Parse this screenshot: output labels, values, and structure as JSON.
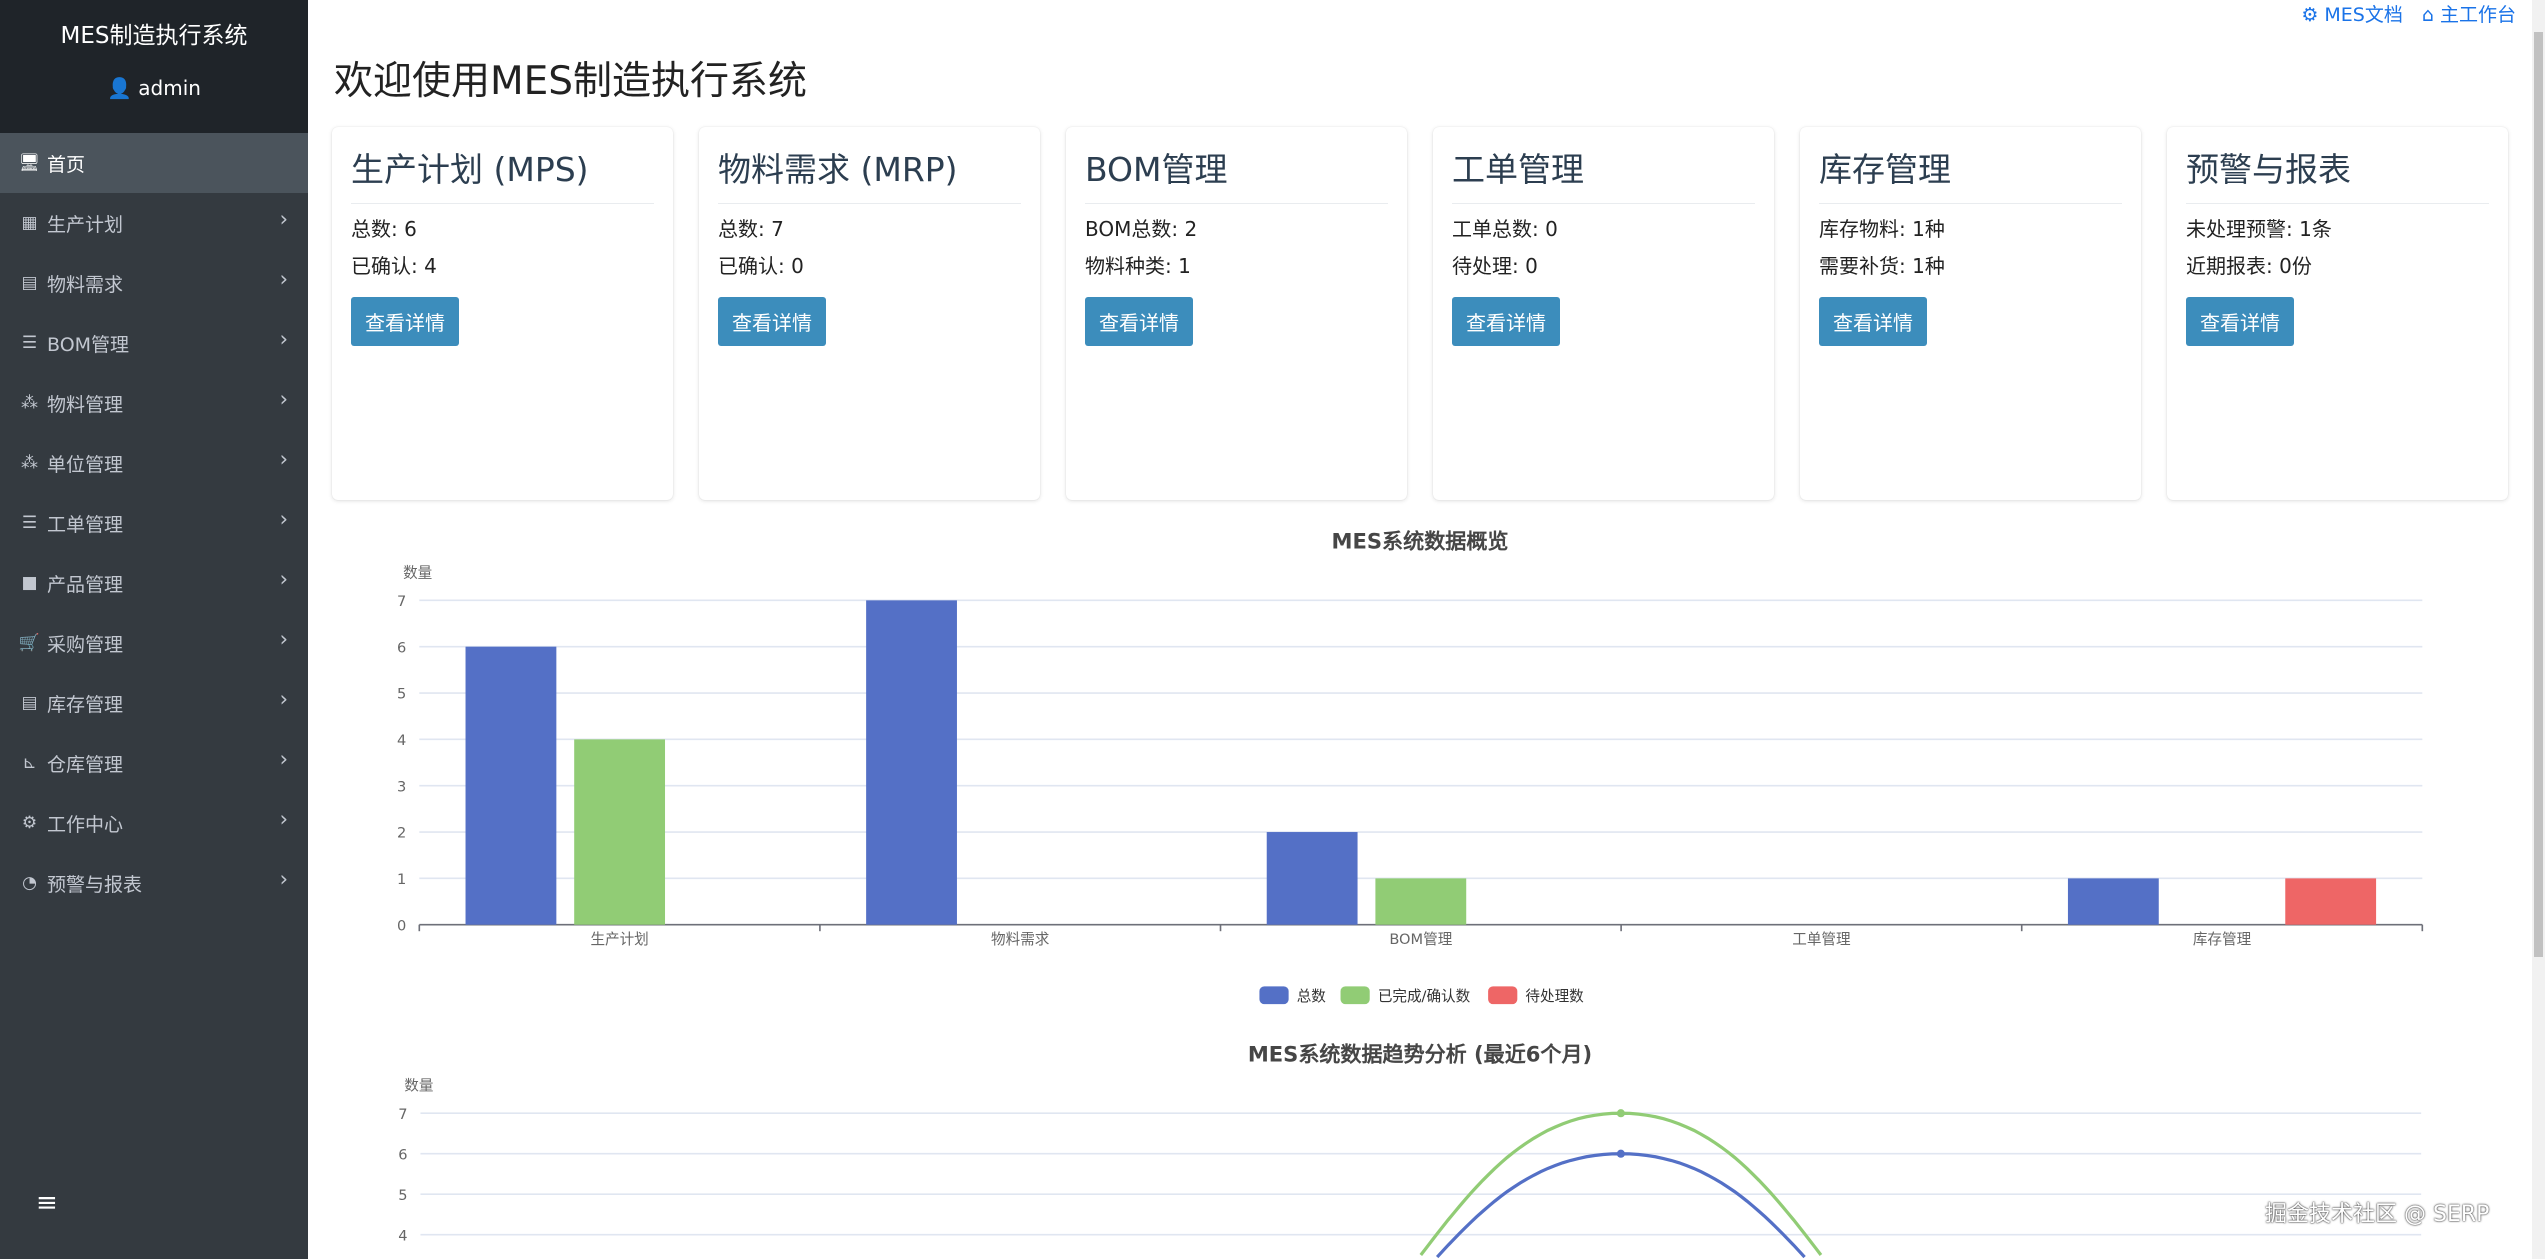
{
  "sidebar": {
    "title": "MES制造执行系统",
    "user": "admin",
    "items": [
      {
        "label": "首页",
        "icon": "desktop-icon",
        "glyph": "🖥",
        "active": true
      },
      {
        "label": "生产计划",
        "icon": "calendar-icon",
        "glyph": "▦"
      },
      {
        "label": "物料需求",
        "icon": "calculator-icon",
        "glyph": "▤"
      },
      {
        "label": "BOM管理",
        "icon": "list-ol-icon",
        "glyph": "☰"
      },
      {
        "label": "物料管理",
        "icon": "cubes-icon",
        "glyph": "⁂"
      },
      {
        "label": "单位管理",
        "icon": "cubes-icon",
        "glyph": "⁂"
      },
      {
        "label": "工单管理",
        "icon": "tasks-icon",
        "glyph": "☰"
      },
      {
        "label": "产品管理",
        "icon": "box-icon",
        "glyph": "■"
      },
      {
        "label": "采购管理",
        "icon": "cart-icon",
        "glyph": "🛒"
      },
      {
        "label": "库存管理",
        "icon": "warehouse-icon",
        "glyph": "▤"
      },
      {
        "label": "仓库管理",
        "icon": "dolly-icon",
        "glyph": "⊾"
      },
      {
        "label": "工作中心",
        "icon": "cogs-icon",
        "glyph": "⚙"
      },
      {
        "label": "预警与报表",
        "icon": "chart-pie-icon",
        "glyph": "◔"
      }
    ],
    "toggle": "≡"
  },
  "header": {
    "links": [
      {
        "label": "MES文档",
        "icon": "cog-icon",
        "glyph": "⚙"
      },
      {
        "label": "主工作台",
        "icon": "home-icon",
        "glyph": "⌂"
      }
    ]
  },
  "page_title": "欢迎使用MES制造执行系统",
  "cards": [
    {
      "title": "生产计划 (MPS)",
      "lines": [
        "总数: 6",
        "已确认: 4"
      ],
      "button": "查看详情"
    },
    {
      "title": "物料需求 (MRP)",
      "lines": [
        "总数: 7",
        "已确认: 0"
      ],
      "button": "查看详情"
    },
    {
      "title": "BOM管理",
      "lines": [
        "BOM总数: 2",
        "物料种类: 1"
      ],
      "button": "查看详情"
    },
    {
      "title": "工单管理",
      "lines": [
        "工单总数: 0",
        "待处理: 0"
      ],
      "button": "查看详情"
    },
    {
      "title": "库存管理",
      "lines": [
        "库存物料: 1种",
        "需要补货: 1种"
      ],
      "button": "查看详情"
    },
    {
      "title": "预警与报表",
      "lines": [
        "未处理预警: 1条",
        "近期报表: 0份"
      ],
      "button": "查看详情"
    }
  ],
  "chart_data": [
    {
      "type": "bar",
      "title": "MES系统数据概览",
      "ylabel": "数量",
      "ylim": [
        0,
        7
      ],
      "yticks": [
        "0",
        "1",
        "2",
        "3",
        "4",
        "5",
        "6",
        "7"
      ],
      "categories": [
        "生产计划",
        "物料需求",
        "BOM管理",
        "工单管理",
        "库存管理"
      ],
      "series": [
        {
          "name": "总数",
          "color": "#5470c6",
          "values": [
            6,
            7,
            2,
            0,
            1
          ]
        },
        {
          "name": "已完成/确认数",
          "color": "#91cc75",
          "values": [
            4,
            0,
            1,
            0,
            0
          ]
        },
        {
          "name": "待处理数",
          "color": "#ee6666",
          "values": [
            0,
            0,
            0,
            0,
            1
          ]
        }
      ],
      "grid": true,
      "legend": "bottom"
    },
    {
      "type": "line",
      "title": "MES系统数据趋势分析 (最近6个月)",
      "ylabel": "数量",
      "ylim": [
        0,
        7
      ],
      "yticks": [
        "4",
        "5",
        "6",
        "7"
      ],
      "smooth": true,
      "series": [
        {
          "color": "#5470c6",
          "values": [
            0,
            0,
            0,
            6,
            0,
            0
          ]
        },
        {
          "color": "#91cc75",
          "values": [
            0,
            0,
            0,
            7,
            0,
            0
          ]
        }
      ],
      "grid": true
    }
  ],
  "watermark": "掘金技术社区 @ SERP"
}
